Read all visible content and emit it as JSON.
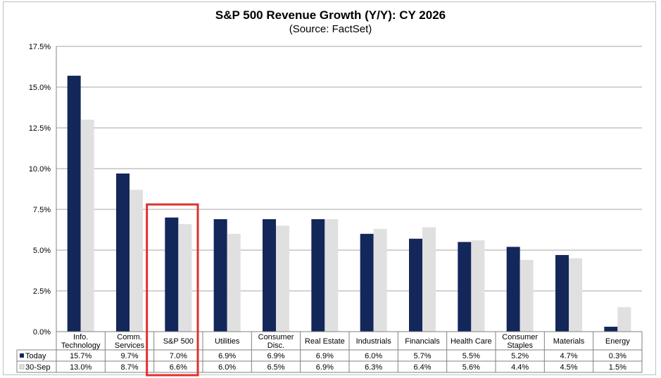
{
  "chart_data": {
    "type": "bar",
    "title": "S&P 500 Revenue Growth (Y/Y):  CY 2026",
    "subtitle": "(Source: FactSet)",
    "categories": [
      [
        "Info.",
        "Technology"
      ],
      [
        "Comm.",
        "Services"
      ],
      [
        "S&P 500"
      ],
      [
        "Utilities"
      ],
      [
        "Consumer",
        "Disc."
      ],
      [
        "Real Estate"
      ],
      [
        "Industrials"
      ],
      [
        "Financials"
      ],
      [
        "Health Care"
      ],
      [
        "Consumer",
        "Staples"
      ],
      [
        "Materials"
      ],
      [
        "Energy"
      ]
    ],
    "series": [
      {
        "name": "Today",
        "color": "#14275a",
        "values": [
          15.7,
          9.7,
          7.0,
          6.9,
          6.9,
          6.9,
          6.0,
          5.7,
          5.5,
          5.2,
          4.7,
          0.3
        ],
        "labels": [
          "15.7%",
          "9.7%",
          "7.0%",
          "6.9%",
          "6.9%",
          "6.9%",
          "6.0%",
          "5.7%",
          "5.5%",
          "5.2%",
          "4.7%",
          "0.3%"
        ]
      },
      {
        "name": "30-Sep",
        "color": "#e0e0e0",
        "values": [
          13.0,
          8.7,
          6.6,
          6.0,
          6.5,
          6.9,
          6.3,
          6.4,
          5.6,
          4.4,
          4.5,
          1.5
        ],
        "labels": [
          "13.0%",
          "8.7%",
          "6.6%",
          "6.0%",
          "6.5%",
          "6.9%",
          "6.3%",
          "6.4%",
          "5.6%",
          "4.4%",
          "4.5%",
          "1.5%"
        ]
      }
    ],
    "ylim": [
      0,
      17.5
    ],
    "yticks": [
      "0.0%",
      "2.5%",
      "5.0%",
      "7.5%",
      "10.0%",
      "12.5%",
      "15.0%",
      "17.5%"
    ],
    "grid": true,
    "legend": "data-table",
    "highlight": {
      "category": "S&P 500",
      "color": "#e03030"
    }
  }
}
